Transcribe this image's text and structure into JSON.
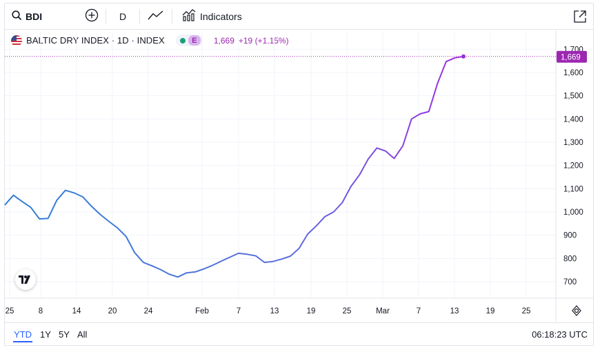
{
  "toolbar": {
    "symbol": "BDI",
    "interval": "D",
    "indicators_label": "Indicators",
    "icons": [
      "search-icon",
      "plus-circle-icon",
      "line-chart-icon",
      "indicators-icon",
      "fullscreen-icon"
    ]
  },
  "legend": {
    "title": "BALTIC DRY INDEX · 1D · INDEX",
    "status_badge": "E",
    "price": "1,669",
    "change": "+19 (+1.15%)"
  },
  "range_buttons": [
    "YTD",
    "1Y",
    "5Y",
    "All"
  ],
  "active_range": "YTD",
  "clock": "06:18:23 UTC",
  "colors": {
    "line_start": "#2f7fd6",
    "line_end": "#9b2ce0",
    "price_label_bg": "#9c27b0",
    "accent": "#2962ff"
  },
  "chart_data": {
    "type": "line",
    "title": "BALTIC DRY INDEX",
    "y_ticks": [
      "1,700",
      "1,600",
      "1,500",
      "1,400",
      "1,300",
      "1,200",
      "1,100",
      "1,000",
      "900",
      "800",
      "700"
    ],
    "x_ticks": [
      "25",
      "8",
      "14",
      "20",
      "24",
      "Feb",
      "7",
      "13",
      "19",
      "25",
      "Mar",
      "7",
      "13",
      "19",
      "25"
    ],
    "last_value_label": "1,669",
    "ylim": [
      670,
      1720
    ],
    "grid": true,
    "series": [
      {
        "values": [
          1030,
          1072,
          1045,
          1020,
          970,
          972,
          1050,
          1093,
          1082,
          1065,
          1025,
          990,
          960,
          932,
          895,
          825,
          783,
          768,
          752,
          732,
          720,
          738,
          742,
          755,
          770,
          788,
          805,
          822,
          818,
          811,
          783,
          787,
          797,
          810,
          843,
          905,
          940,
          980,
          1000,
          1040,
          1110,
          1160,
          1228,
          1275,
          1262,
          1230,
          1285,
          1400,
          1422,
          1432,
          1553,
          1647,
          1663,
          1669
        ]
      }
    ]
  }
}
